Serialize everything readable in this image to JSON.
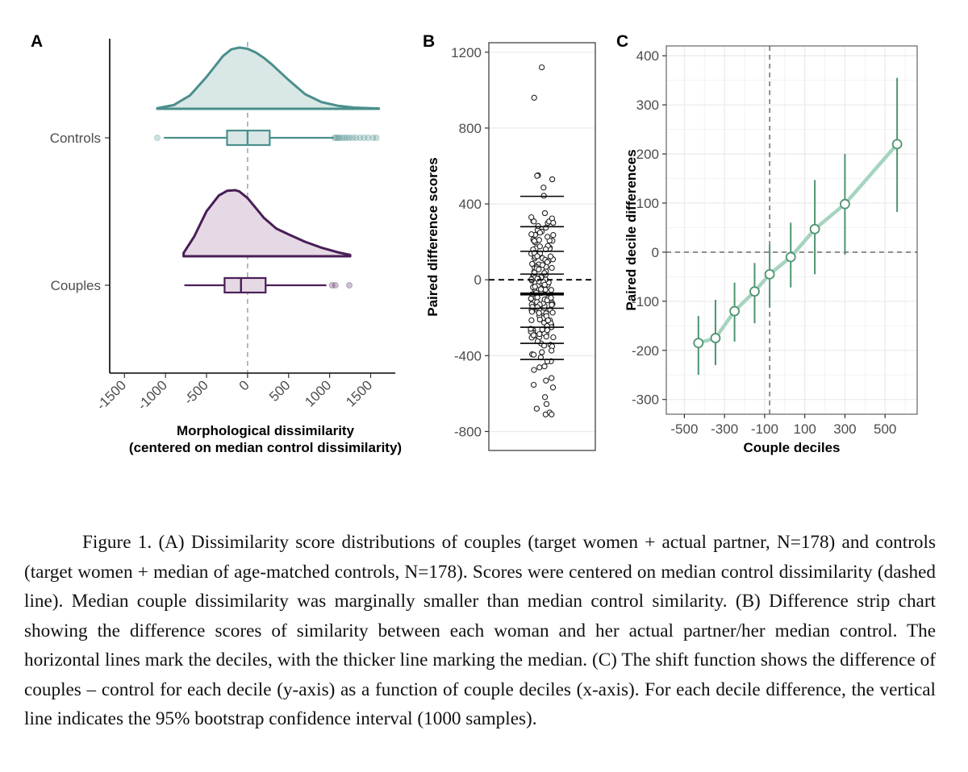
{
  "chart_data": [
    {
      "panel": "A",
      "type": "raincloud",
      "xlabel_lines": [
        "Morphological dissimilarity",
        "(centered on median control dissimilarity)"
      ],
      "xticks": [
        -1500,
        -1000,
        -500,
        0,
        500,
        1000,
        1500
      ],
      "xlim": [
        -1680,
        1800
      ],
      "reference_line_x": 0,
      "groups": [
        {
          "name": "Controls",
          "color": "#4b8f8c",
          "fill": "#d9e8e6",
          "density_x": [
            -1100,
            -900,
            -700,
            -500,
            -300,
            -200,
            -100,
            0,
            100,
            200,
            300,
            500,
            700,
            900,
            1100,
            1300,
            1500,
            1600
          ],
          "density_y": [
            0.01,
            0.06,
            0.22,
            0.52,
            0.86,
            0.97,
            1.0,
            0.98,
            0.92,
            0.83,
            0.72,
            0.47,
            0.24,
            0.11,
            0.05,
            0.02,
            0.01,
            0.005
          ],
          "density_range": [
            -1100,
            1600
          ],
          "box": {
            "whisker_low": -1020,
            "q1": -250,
            "median": 0,
            "q3": 270,
            "whisker_high": 1050
          },
          "outliers": [
            -1100,
            1060,
            1080,
            1100,
            1120,
            1150,
            1180,
            1210,
            1240,
            1280,
            1320,
            1370,
            1420,
            1470,
            1530,
            1570
          ]
        },
        {
          "name": "Couples",
          "color": "#4a1d57",
          "fill": "#e4d9e5",
          "density_x": [
            -780,
            -650,
            -500,
            -350,
            -250,
            -150,
            -100,
            0,
            100,
            200,
            350,
            500,
            700,
            900,
            1100,
            1250
          ],
          "density_y": [
            0.05,
            0.3,
            0.68,
            0.92,
            0.99,
            1.0,
            0.98,
            0.88,
            0.73,
            0.58,
            0.42,
            0.33,
            0.22,
            0.13,
            0.06,
            0.02
          ],
          "density_range": [
            -780,
            1250
          ],
          "box": {
            "whisker_low": -770,
            "q1": -280,
            "median": -80,
            "q3": 220,
            "whisker_high": 960
          },
          "outliers": [
            1030,
            1070,
            1240
          ]
        }
      ]
    },
    {
      "panel": "B",
      "type": "strip",
      "ylabel": "Paired difference scores",
      "yticks": [
        -800,
        -400,
        0,
        400,
        800,
        1200
      ],
      "ylim": [
        -900,
        1250
      ],
      "zero_line": 0,
      "deciles": [
        -420,
        -335,
        -250,
        -150,
        -75,
        30,
        150,
        280,
        440
      ],
      "median": -75,
      "points_summary": {
        "n": 178,
        "min": -710,
        "max": 1120
      }
    },
    {
      "panel": "C",
      "type": "line",
      "xlabel": "Couple deciles",
      "ylabel": "Paired decile differences",
      "xticks": [
        -500,
        -300,
        -100,
        100,
        300,
        500
      ],
      "yticks": [
        -300,
        -200,
        -100,
        0,
        100,
        200,
        300,
        400
      ],
      "xlim": [
        -590,
        660
      ],
      "ylim": [
        -330,
        420
      ],
      "vline_x": -75,
      "hline_y": 0,
      "points": [
        {
          "x": -430,
          "y": -185,
          "ci_low": -250,
          "ci_high": -130
        },
        {
          "x": -345,
          "y": -175,
          "ci_low": -230,
          "ci_high": -97
        },
        {
          "x": -250,
          "y": -120,
          "ci_low": -182,
          "ci_high": -62
        },
        {
          "x": -150,
          "y": -80,
          "ci_low": -145,
          "ci_high": -22
        },
        {
          "x": -75,
          "y": -45,
          "ci_low": -112,
          "ci_high": 15
        },
        {
          "x": 30,
          "y": -10,
          "ci_low": -72,
          "ci_high": 60
        },
        {
          "x": 150,
          "y": 47,
          "ci_low": -45,
          "ci_high": 147
        },
        {
          "x": 300,
          "y": 98,
          "ci_low": -5,
          "ci_high": 200
        },
        {
          "x": 560,
          "y": 220,
          "ci_low": 82,
          "ci_high": 355
        }
      ]
    }
  ],
  "panels": {
    "a": "A",
    "b": "B",
    "c": "C"
  },
  "colors": {
    "controls": "#4b8f8c",
    "controls_fill": "#d9e8e6",
    "couples": "#4a1d57",
    "couples_fill": "#e4d9e5",
    "shift_line": "#a5d4bf",
    "shift_ci": "#4e9470",
    "grid": "#ebebeb"
  },
  "caption": "Figure 1. (A) Dissimilarity score distributions of couples (target women + actual partner, N=178) and controls (target women + median of age-matched controls, N=178). Scores were centered on median control dissimilarity (dashed line). Median couple dissimilarity was marginally smaller than median control similarity. (B) Difference strip chart showing the difference scores of similarity between each woman and her actual partner/her median control. The horizontal lines mark the deciles, with the thicker line marking the median. (C) The shift function shows the difference of couples – control for each decile (y-axis) as a function of couple deciles (x-axis). For each decile difference, the vertical line indicates the 95% bootstrap confidence interval (1000 samples)."
}
